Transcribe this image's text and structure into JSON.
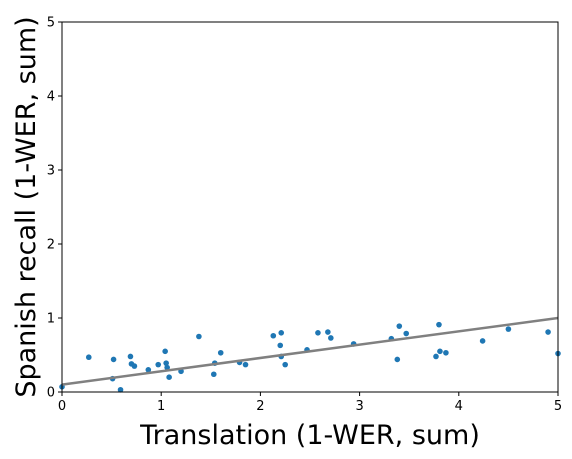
{
  "chart_data": {
    "type": "scatter",
    "title": "",
    "xlabel": "Translation (1-WER, sum)",
    "ylabel": "Spanish recall (1-WER, sum)",
    "xlim": [
      0,
      5
    ],
    "ylim": [
      0,
      5
    ],
    "x_ticks": [
      "0",
      "1",
      "2",
      "3",
      "4",
      "5"
    ],
    "y_ticks": [
      "0",
      "1",
      "2",
      "3",
      "4",
      "5"
    ],
    "grid": false,
    "legend": "none",
    "points": [
      [
        0.0,
        0.07
      ],
      [
        0.27,
        0.47
      ],
      [
        0.52,
        0.44
      ],
      [
        0.51,
        0.18
      ],
      [
        0.59,
        0.03
      ],
      [
        0.69,
        0.48
      ],
      [
        0.7,
        0.38
      ],
      [
        0.73,
        0.35
      ],
      [
        0.87,
        0.3
      ],
      [
        0.97,
        0.37
      ],
      [
        1.04,
        0.55
      ],
      [
        1.05,
        0.39
      ],
      [
        1.06,
        0.33
      ],
      [
        1.08,
        0.2
      ],
      [
        1.2,
        0.28
      ],
      [
        1.38,
        0.75
      ],
      [
        1.53,
        0.24
      ],
      [
        1.54,
        0.39
      ],
      [
        1.6,
        0.53
      ],
      [
        1.79,
        0.4
      ],
      [
        1.85,
        0.37
      ],
      [
        2.13,
        0.76
      ],
      [
        2.21,
        0.8
      ],
      [
        2.2,
        0.63
      ],
      [
        2.21,
        0.48
      ],
      [
        2.25,
        0.37
      ],
      [
        2.47,
        0.57
      ],
      [
        2.58,
        0.8
      ],
      [
        2.68,
        0.81
      ],
      [
        2.71,
        0.73
      ],
      [
        2.94,
        0.65
      ],
      [
        3.32,
        0.72
      ],
      [
        3.4,
        0.89
      ],
      [
        3.38,
        0.44
      ],
      [
        3.47,
        0.79
      ],
      [
        3.77,
        0.48
      ],
      [
        3.8,
        0.91
      ],
      [
        3.81,
        0.55
      ],
      [
        3.87,
        0.53
      ],
      [
        4.24,
        0.69
      ],
      [
        4.5,
        0.85
      ],
      [
        4.9,
        0.81
      ],
      [
        5.0,
        0.52
      ]
    ],
    "fit_line": {
      "x": [
        0,
        5
      ],
      "y": [
        0.1,
        1.0
      ]
    },
    "colors": {
      "points": "#1f77b4",
      "fit_line": "#808080",
      "axes": "#000000"
    }
  }
}
